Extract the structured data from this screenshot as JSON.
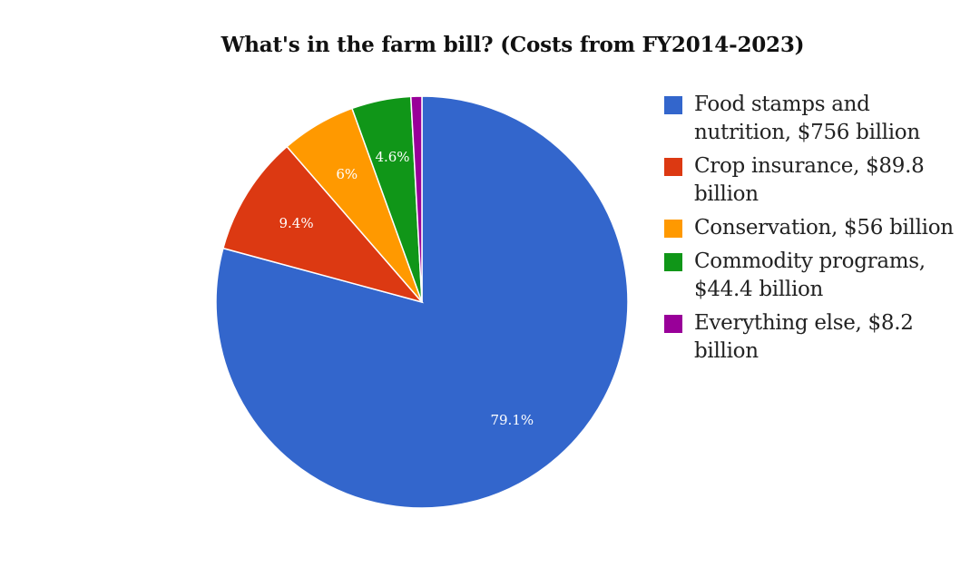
{
  "chart_data": {
    "type": "pie",
    "title": "What's in the farm bill? (Costs from FY2014-2023)",
    "slices": [
      {
        "label": "Food stamps and nutrition, $756 billion",
        "value": 756,
        "percent_label": "79.1%",
        "color": "#3366cc"
      },
      {
        "label": "Crop insurance, $89.8 billion",
        "value": 89.8,
        "percent_label": "9.4%",
        "color": "#dc3912"
      },
      {
        "label": "Conservation, $56 billion",
        "value": 56,
        "percent_label": "6%",
        "color": "#ff9900"
      },
      {
        "label": "Commodity programs, $44.4 billion",
        "value": 44.4,
        "percent_label": "4.6%",
        "color": "#109618"
      },
      {
        "label": "Everything else, $8.2 billion",
        "value": 8.2,
        "percent_label": "",
        "color": "#990099"
      }
    ],
    "legend_position": "right"
  }
}
